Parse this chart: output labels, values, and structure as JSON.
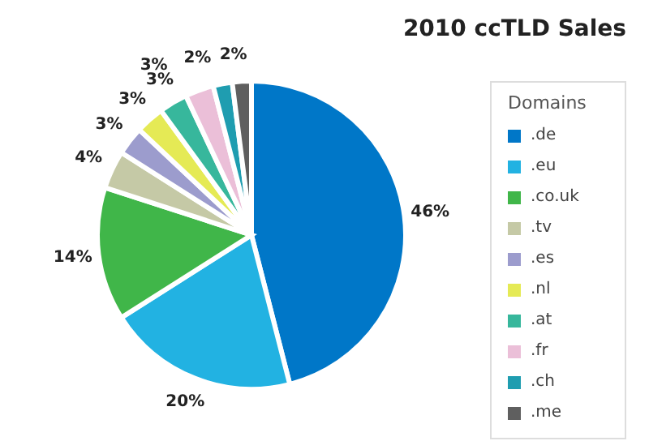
{
  "chart_data": {
    "type": "pie",
    "title": "2010 ccTLD Sales",
    "legend_title": "Domains",
    "legend": "right",
    "categories": [
      ".de",
      ".eu",
      ".co.uk",
      ".tv",
      ".es",
      ".nl",
      ".at",
      ".fr",
      ".ch",
      ".me"
    ],
    "values": [
      46,
      20,
      14,
      4,
      3,
      3,
      3,
      3,
      2,
      2
    ],
    "value_labels": [
      "46%",
      "20%",
      "14%",
      "4%",
      "3%",
      "3%",
      "3%",
      "3%",
      "2%",
      "2%"
    ],
    "colors": [
      "#0077c8",
      "#22b2e2",
      "#40b649",
      "#c5c9a6",
      "#9c9ccd",
      "#e5ea55",
      "#37b79c",
      "#ebbfd8",
      "#1f9db0",
      "#5f5f5f"
    ]
  }
}
